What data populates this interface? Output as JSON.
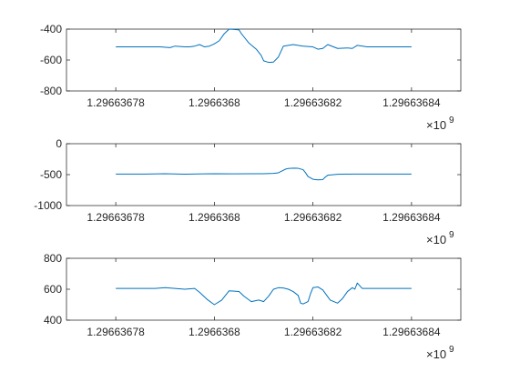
{
  "line_color": "#0072bd",
  "axis_color": "#262626",
  "chart_data": [
    {
      "type": "line",
      "xlim": [
        1.29663677,
        1.29663685
      ],
      "ylim": [
        -800,
        -400
      ],
      "x_exponent_label": "×10",
      "x_exponent_power": "9",
      "x_ticks": [
        1.29663678,
        1.2966368,
        1.29663682,
        1.29663684
      ],
      "x_tick_labels": [
        "1.29663678",
        "1.2966368",
        "1.29663682",
        "1.29663684"
      ],
      "y_ticks": [
        -800,
        -600,
        -400
      ],
      "y_tick_labels": [
        "-800",
        "-600",
        "-400"
      ],
      "series": [
        {
          "x": [
            1.29663678,
            1.296636788,
            1.296636789,
            1.296636791,
            1.296636792,
            1.296636794,
            1.296636795,
            1.296636796,
            1.296636797,
            1.296636798,
            1.296636799,
            1.2966368,
            1.296636801,
            1.296636802,
            1.296636803,
            1.296636804,
            1.296636805,
            1.2966368055,
            1.296636806,
            1.296636807,
            1.2966368085,
            1.2966368095,
            1.29663681,
            1.296636811,
            1.2966368115,
            1.296636812,
            1.296636813,
            1.296636814,
            1.296636816,
            1.296636818,
            1.29663682,
            1.296636821,
            1.296636822,
            1.296636823,
            1.296636825,
            1.296636827,
            1.296636828,
            1.296636829,
            1.296636831,
            1.29663684
          ],
          "y": [
            -515,
            -515,
            -515,
            -520,
            -510,
            -515,
            -515,
            -510,
            -500,
            -515,
            -510,
            -495,
            -475,
            -430,
            -400,
            -402,
            -405,
            -430,
            -450,
            -490,
            -530,
            -570,
            -605,
            -615,
            -615,
            -613,
            -580,
            -510,
            -500,
            -510,
            -515,
            -530,
            -525,
            -500,
            -525,
            -522,
            -525,
            -505,
            -515,
            -515
          ]
        }
      ]
    },
    {
      "type": "line",
      "xlim": [
        1.29663677,
        1.29663685
      ],
      "ylim": [
        -1000,
        0
      ],
      "x_exponent_label": "×10",
      "x_exponent_power": "9",
      "x_ticks": [
        1.29663678,
        1.2966368,
        1.29663682,
        1.29663684
      ],
      "x_tick_labels": [
        "1.29663678",
        "1.2966368",
        "1.29663682",
        "1.29663684"
      ],
      "y_ticks": [
        -1000,
        -500,
        0
      ],
      "y_tick_labels": [
        "-1000",
        "-500",
        "0"
      ],
      "series": [
        {
          "x": [
            1.29663678,
            1.296636786,
            1.29663679,
            1.296636794,
            1.296636798,
            1.2966368,
            1.296636804,
            1.296636808,
            1.29663681,
            1.296636812,
            1.296636813,
            1.2966368135,
            1.296636814,
            1.2966368145,
            1.296636815,
            1.296636816,
            1.296636817,
            1.296636818,
            1.2966368185,
            1.296636819,
            1.29663682,
            1.296636821,
            1.296636822,
            1.2966368225,
            1.296636823,
            1.296636825,
            1.296636828,
            1.296636831,
            1.29663684
          ],
          "y": [
            -490,
            -490,
            -485,
            -492,
            -488,
            -485,
            -488,
            -485,
            -485,
            -480,
            -470,
            -450,
            -430,
            -410,
            -400,
            -395,
            -398,
            -420,
            -470,
            -530,
            -575,
            -585,
            -580,
            -540,
            -510,
            -495,
            -490,
            -490,
            -490
          ]
        }
      ]
    },
    {
      "type": "line",
      "xlim": [
        1.29663677,
        1.29663685
      ],
      "ylim": [
        400,
        800
      ],
      "x_exponent_label": "×10",
      "x_exponent_power": "9",
      "x_ticks": [
        1.29663678,
        1.2966368,
        1.29663682,
        1.29663684
      ],
      "x_tick_labels": [
        "1.29663678",
        "1.2966368",
        "1.29663682",
        "1.29663684"
      ],
      "y_ticks": [
        400,
        600,
        800
      ],
      "y_tick_labels": [
        "400",
        "600",
        "800"
      ],
      "series": [
        {
          "x": [
            1.29663678,
            1.296636788,
            1.29663679,
            1.296636792,
            1.296636794,
            1.296636796,
            1.296636797,
            1.2966367985,
            1.2966368,
            1.2966368015,
            1.296636803,
            1.296636805,
            1.296636806,
            1.2966368075,
            1.296636809,
            1.29663681,
            1.296636811,
            1.296636812,
            1.296636813,
            1.296636814,
            1.296636815,
            1.296636816,
            1.296636817,
            1.2966368175,
            1.296636818,
            1.296636819,
            1.2966368195,
            1.29663682,
            1.296636821,
            1.296636822,
            1.2966368235,
            1.296636825,
            1.296636826,
            1.296636827,
            1.296636828,
            1.2966368285,
            1.296636829,
            1.29663683,
            1.29663684
          ],
          "y": [
            605,
            605,
            610,
            605,
            600,
            605,
            580,
            535,
            500,
            530,
            590,
            585,
            555,
            520,
            530,
            520,
            555,
            600,
            610,
            608,
            600,
            585,
            560,
            510,
            505,
            520,
            570,
            610,
            615,
            595,
            530,
            510,
            540,
            585,
            610,
            600,
            640,
            605,
            605
          ]
        }
      ]
    }
  ]
}
